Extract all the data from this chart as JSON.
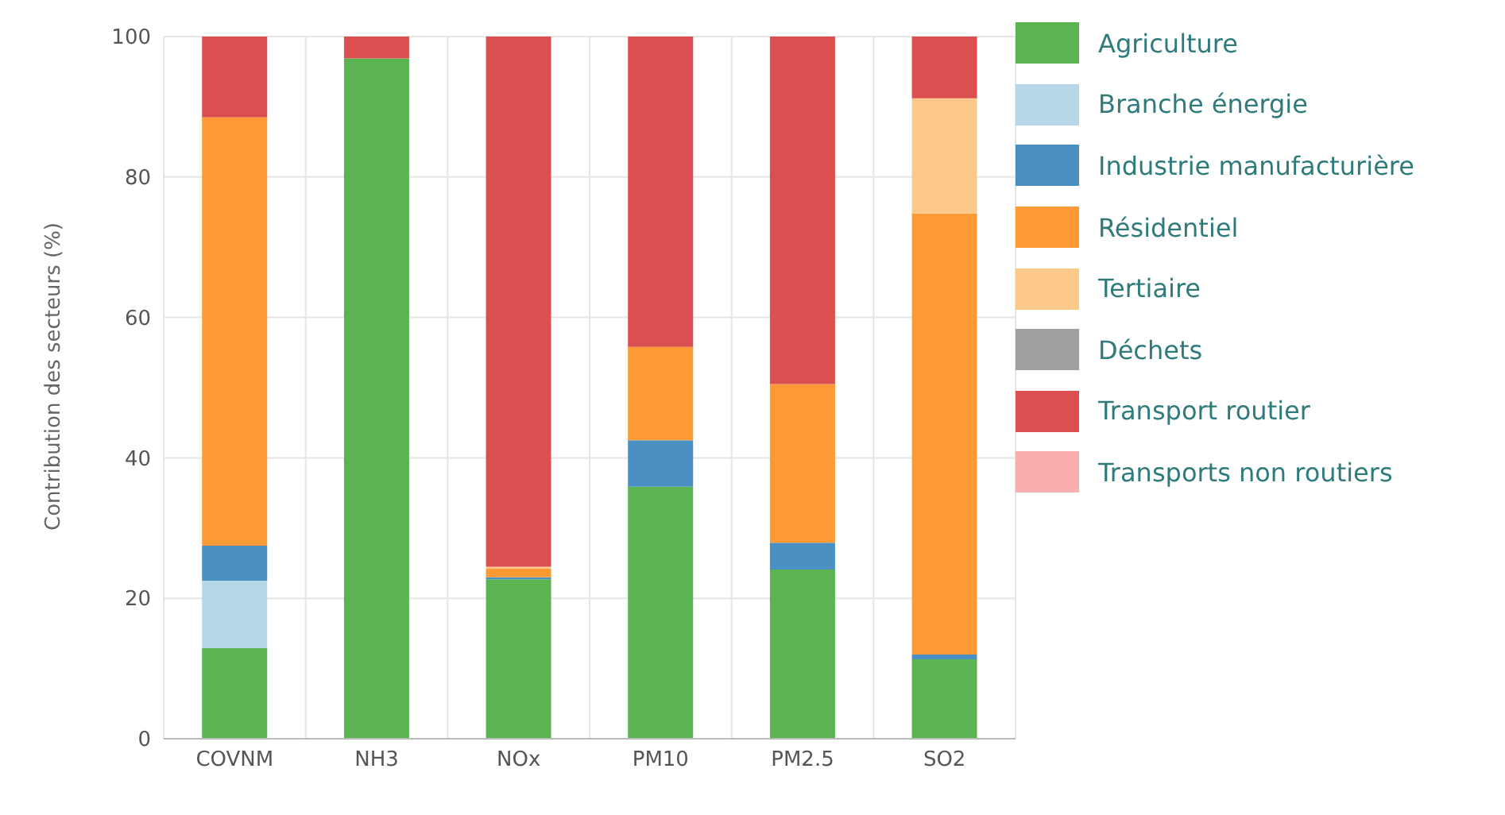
{
  "chart_data": {
    "type": "bar",
    "stacked": true,
    "ylabel": "Contribution des secteurs (%)",
    "categories": [
      "COVNM",
      "NH3",
      "NOx",
      "PM10",
      "PM2.5",
      "SO2"
    ],
    "series": [
      {
        "name": "Agriculture",
        "color": "#5cb352",
        "values": [
          12.9,
          96.9,
          22.7,
          35.9,
          24.1,
          11.3
        ]
      },
      {
        "name": "Branche énergie",
        "color": "#b6d7e8",
        "values": [
          9.6,
          0,
          0,
          0,
          0,
          0
        ]
      },
      {
        "name": "Industrie manufacturière",
        "color": "#4a90c2",
        "values": [
          5,
          0,
          0.3,
          6.6,
          3.8,
          0.7
        ]
      },
      {
        "name": "Résidentiel",
        "color": "#fd9a35",
        "values": [
          61,
          0,
          1.2,
          13.3,
          22.6,
          62.8
        ]
      },
      {
        "name": "Tertiaire",
        "color": "#fdc98a",
        "values": [
          0,
          0,
          0.3,
          0,
          0,
          16.4
        ]
      },
      {
        "name": "Déchets",
        "color": "#a0a0a0",
        "values": [
          0,
          0,
          0,
          0,
          0,
          0
        ]
      },
      {
        "name": "Transport routier",
        "color": "#db4f51",
        "values": [
          11.5,
          3.1,
          75.5,
          44.2,
          49.5,
          8.8
        ]
      },
      {
        "name": "Transports non routiers",
        "color": "#fbaeae",
        "values": [
          0,
          0,
          0,
          0,
          0,
          0
        ]
      }
    ],
    "ylim": [
      0,
      100
    ],
    "yticks": [
      0,
      20,
      40,
      60,
      80,
      100
    ],
    "grid": true,
    "legend": "right"
  }
}
